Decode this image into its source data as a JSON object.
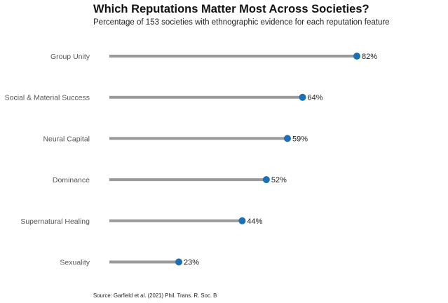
{
  "chart_data": {
    "type": "lollipop",
    "title": "Which Reputations Matter Most Across Societies?",
    "subtitle": "Percentage of 153 societies with ethnographic evidence for each reputation feature",
    "source": "Source: Garfield et al. (2021) Phil. Trans. R. Soc. B",
    "categories": [
      "Group Unity",
      "Social & Material Success",
      "Neural Capital",
      "Dominance",
      "Supernatural Healing",
      "Sexuality"
    ],
    "values": [
      82,
      64,
      59,
      52,
      44,
      23
    ],
    "value_suffix": "%",
    "xlim": [
      0,
      82
    ],
    "grid": false,
    "colors": {
      "stem": "#999999",
      "dot": "#1a6fb5"
    }
  }
}
